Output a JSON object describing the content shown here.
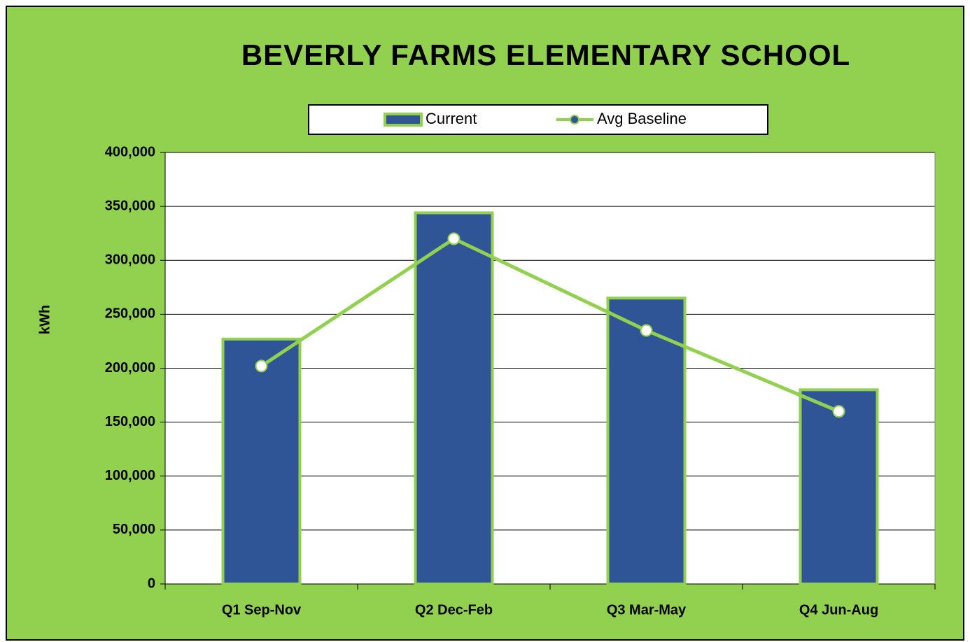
{
  "chart_data": {
    "type": "bar_line",
    "title": "BEVERLY FARMS ELEMENTARY SCHOOL",
    "y_label": "kWh",
    "categories": [
      "Q1 Sep-Nov",
      "Q2 Dec-Feb",
      "Q3 Mar-May",
      "Q4 Jun-Aug"
    ],
    "series": [
      {
        "name": "Current",
        "type": "bar",
        "color": "#2f5597",
        "values": [
          227000,
          344000,
          265000,
          180000
        ]
      },
      {
        "name": "Avg Baseline",
        "type": "line",
        "color": "#92d050",
        "values": [
          202000,
          320000,
          235000,
          160000
        ]
      }
    ],
    "ylim": [
      0,
      400000
    ],
    "yticks": [
      0,
      {
        "value": 50000,
        "label": "50,000"
      },
      {
        "value": 100000,
        "label": "100,000"
      },
      {
        "value": 150000,
        "label": "150,000"
      },
      {
        "value": 200000,
        "label": "200,000"
      },
      {
        "value": 250000,
        "label": "250,000"
      },
      {
        "value": 300000,
        "label": "300,000"
      },
      {
        "value": 350000,
        "label": "350,000"
      },
      {
        "value": 400000,
        "label": "400,000"
      }
    ],
    "grid": true,
    "legend": "top"
  }
}
